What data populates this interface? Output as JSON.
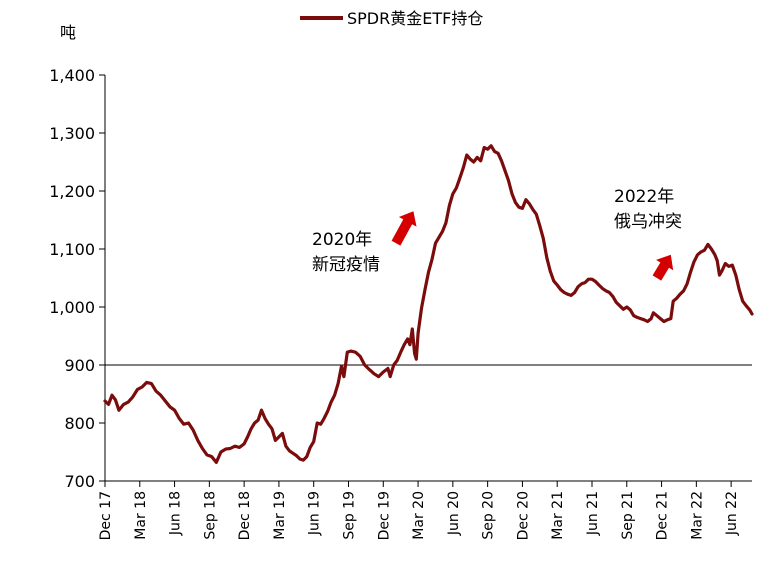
{
  "chart_data": {
    "type": "line",
    "ylabel": "吨",
    "ylim": [
      700,
      1400
    ],
    "yticks": [
      700,
      800,
      900,
      1000,
      1100,
      1200,
      1300,
      1400
    ],
    "ytick_labels": [
      "700",
      "800",
      "900",
      "1,000",
      "1,100",
      "1,200",
      "1,300",
      "1,400"
    ],
    "xticks": [
      {
        "label": "Dec 17",
        "x": 0
      },
      {
        "label": "Mar 18",
        "x": 3
      },
      {
        "label": "Jun 18",
        "x": 6
      },
      {
        "label": "Sep 18",
        "x": 9
      },
      {
        "label": "Dec 18",
        "x": 12
      },
      {
        "label": "Mar 19",
        "x": 15
      },
      {
        "label": "Jun 19",
        "x": 18
      },
      {
        "label": "Sep 19",
        "x": 21
      },
      {
        "label": "Dec 19",
        "x": 24
      },
      {
        "label": "Mar 20",
        "x": 27
      },
      {
        "label": "Jun 20",
        "x": 30
      },
      {
        "label": "Sep 20",
        "x": 33
      },
      {
        "label": "Dec 20",
        "x": 36
      },
      {
        "label": "Mar 21",
        "x": 39
      },
      {
        "label": "Jun 21",
        "x": 42
      },
      {
        "label": "Sep 21",
        "x": 45
      },
      {
        "label": "Dec 21",
        "x": 48
      },
      {
        "label": "Mar 22",
        "x": 51
      },
      {
        "label": "Jun 22",
        "x": 54
      }
    ],
    "xlim": [
      0,
      55.8
    ],
    "reference_line": 900,
    "series": [
      {
        "name": "SPDR黄金ETF持仓",
        "color": "#7b0c0c",
        "points": [
          [
            0,
            838
          ],
          [
            0.3,
            832
          ],
          [
            0.6,
            848
          ],
          [
            0.9,
            840
          ],
          [
            1.2,
            822
          ],
          [
            1.6,
            832
          ],
          [
            2.0,
            836
          ],
          [
            2.4,
            845
          ],
          [
            2.8,
            858
          ],
          [
            3.2,
            862
          ],
          [
            3.6,
            870
          ],
          [
            4.0,
            868
          ],
          [
            4.4,
            855
          ],
          [
            4.8,
            848
          ],
          [
            5.2,
            838
          ],
          [
            5.6,
            828
          ],
          [
            6.0,
            822
          ],
          [
            6.4,
            808
          ],
          [
            6.8,
            798
          ],
          [
            7.2,
            800
          ],
          [
            7.6,
            788
          ],
          [
            8.0,
            770
          ],
          [
            8.4,
            756
          ],
          [
            8.8,
            745
          ],
          [
            9.2,
            742
          ],
          [
            9.6,
            732
          ],
          [
            10.0,
            750
          ],
          [
            10.4,
            755
          ],
          [
            10.8,
            756
          ],
          [
            11.2,
            760
          ],
          [
            11.6,
            758
          ],
          [
            12.0,
            764
          ],
          [
            12.3,
            776
          ],
          [
            12.6,
            790
          ],
          [
            12.9,
            800
          ],
          [
            13.2,
            805
          ],
          [
            13.5,
            822
          ],
          [
            13.8,
            808
          ],
          [
            14.1,
            798
          ],
          [
            14.4,
            790
          ],
          [
            14.7,
            770
          ],
          [
            15.0,
            776
          ],
          [
            15.3,
            782
          ],
          [
            15.6,
            760
          ],
          [
            15.9,
            752
          ],
          [
            16.2,
            748
          ],
          [
            16.5,
            744
          ],
          [
            16.8,
            738
          ],
          [
            17.1,
            736
          ],
          [
            17.4,
            742
          ],
          [
            17.7,
            758
          ],
          [
            18.0,
            768
          ],
          [
            18.3,
            800
          ],
          [
            18.6,
            798
          ],
          [
            18.9,
            808
          ],
          [
            19.2,
            820
          ],
          [
            19.5,
            836
          ],
          [
            19.8,
            848
          ],
          [
            20.1,
            868
          ],
          [
            20.4,
            898
          ],
          [
            20.6,
            880
          ],
          [
            20.9,
            922
          ],
          [
            21.2,
            924
          ],
          [
            21.6,
            922
          ],
          [
            22.0,
            915
          ],
          [
            22.4,
            900
          ],
          [
            22.8,
            892
          ],
          [
            23.2,
            885
          ],
          [
            23.6,
            880
          ],
          [
            24.0,
            888
          ],
          [
            24.4,
            894
          ],
          [
            24.6,
            880
          ],
          [
            24.9,
            900
          ],
          [
            25.2,
            908
          ],
          [
            25.5,
            922
          ],
          [
            25.8,
            935
          ],
          [
            26.1,
            945
          ],
          [
            26.3,
            935
          ],
          [
            26.5,
            962
          ],
          [
            26.7,
            920
          ],
          [
            26.85,
            910
          ],
          [
            27.0,
            955
          ],
          [
            27.3,
            998
          ],
          [
            27.6,
            1030
          ],
          [
            27.9,
            1060
          ],
          [
            28.2,
            1082
          ],
          [
            28.5,
            1110
          ],
          [
            28.8,
            1120
          ],
          [
            29.1,
            1130
          ],
          [
            29.4,
            1145
          ],
          [
            29.7,
            1175
          ],
          [
            30.0,
            1195
          ],
          [
            30.3,
            1205
          ],
          [
            30.6,
            1222
          ],
          [
            30.9,
            1240
          ],
          [
            31.2,
            1262
          ],
          [
            31.5,
            1255
          ],
          [
            31.8,
            1250
          ],
          [
            32.1,
            1258
          ],
          [
            32.4,
            1252
          ],
          [
            32.7,
            1275
          ],
          [
            33.0,
            1272
          ],
          [
            33.3,
            1278
          ],
          [
            33.6,
            1268
          ],
          [
            33.9,
            1265
          ],
          [
            34.2,
            1252
          ],
          [
            34.5,
            1235
          ],
          [
            34.8,
            1218
          ],
          [
            35.1,
            1195
          ],
          [
            35.4,
            1180
          ],
          [
            35.7,
            1172
          ],
          [
            36.0,
            1170
          ],
          [
            36.3,
            1185
          ],
          [
            36.6,
            1178
          ],
          [
            36.9,
            1168
          ],
          [
            37.2,
            1160
          ],
          [
            37.5,
            1140
          ],
          [
            37.8,
            1118
          ],
          [
            38.1,
            1085
          ],
          [
            38.4,
            1062
          ],
          [
            38.7,
            1045
          ],
          [
            39.0,
            1038
          ],
          [
            39.3,
            1030
          ],
          [
            39.6,
            1025
          ],
          [
            39.9,
            1022
          ],
          [
            40.2,
            1020
          ],
          [
            40.5,
            1025
          ],
          [
            40.8,
            1035
          ],
          [
            41.1,
            1040
          ],
          [
            41.4,
            1042
          ],
          [
            41.7,
            1048
          ],
          [
            42.0,
            1048
          ],
          [
            42.3,
            1044
          ],
          [
            42.6,
            1038
          ],
          [
            42.9,
            1032
          ],
          [
            43.2,
            1028
          ],
          [
            43.5,
            1025
          ],
          [
            43.8,
            1018
          ],
          [
            44.1,
            1008
          ],
          [
            44.4,
            1002
          ],
          [
            44.7,
            996
          ],
          [
            45.0,
            1000
          ],
          [
            45.3,
            995
          ],
          [
            45.6,
            985
          ],
          [
            45.9,
            982
          ],
          [
            46.2,
            980
          ],
          [
            46.5,
            978
          ],
          [
            46.8,
            975
          ],
          [
            47.1,
            980
          ],
          [
            47.3,
            990
          ],
          [
            47.6,
            985
          ],
          [
            47.9,
            980
          ],
          [
            48.2,
            975
          ],
          [
            48.5,
            978
          ],
          [
            48.8,
            980
          ],
          [
            49.0,
            1010
          ],
          [
            49.3,
            1015
          ],
          [
            49.6,
            1022
          ],
          [
            49.9,
            1028
          ],
          [
            50.2,
            1040
          ],
          [
            50.5,
            1060
          ],
          [
            50.8,
            1078
          ],
          [
            51.1,
            1090
          ],
          [
            51.4,
            1095
          ],
          [
            51.7,
            1098
          ],
          [
            52.0,
            1108
          ],
          [
            52.3,
            1100
          ],
          [
            52.6,
            1090
          ],
          [
            52.8,
            1080
          ],
          [
            53.0,
            1055
          ],
          [
            53.2,
            1062
          ],
          [
            53.5,
            1075
          ],
          [
            53.8,
            1070
          ],
          [
            54.1,
            1072
          ],
          [
            54.4,
            1055
          ],
          [
            54.7,
            1030
          ],
          [
            55.0,
            1010
          ],
          [
            55.3,
            1002
          ],
          [
            55.6,
            995
          ],
          [
            55.8,
            988
          ]
        ]
      }
    ],
    "legend": {
      "label": "SPDR黄金ETF持仓",
      "position": "top-center"
    },
    "annotations": [
      {
        "lines": [
          "2020年",
          "新冠疫情"
        ],
        "arrow_from": [
          25.1,
          1110
        ],
        "arrow_to": [
          26.6,
          1165
        ]
      },
      {
        "lines": [
          "2022年",
          "俄乌冲突"
        ],
        "arrow_from": [
          47.6,
          1050
        ],
        "arrow_to": [
          48.8,
          1090
        ]
      }
    ],
    "arrow_color": "#d40000"
  }
}
